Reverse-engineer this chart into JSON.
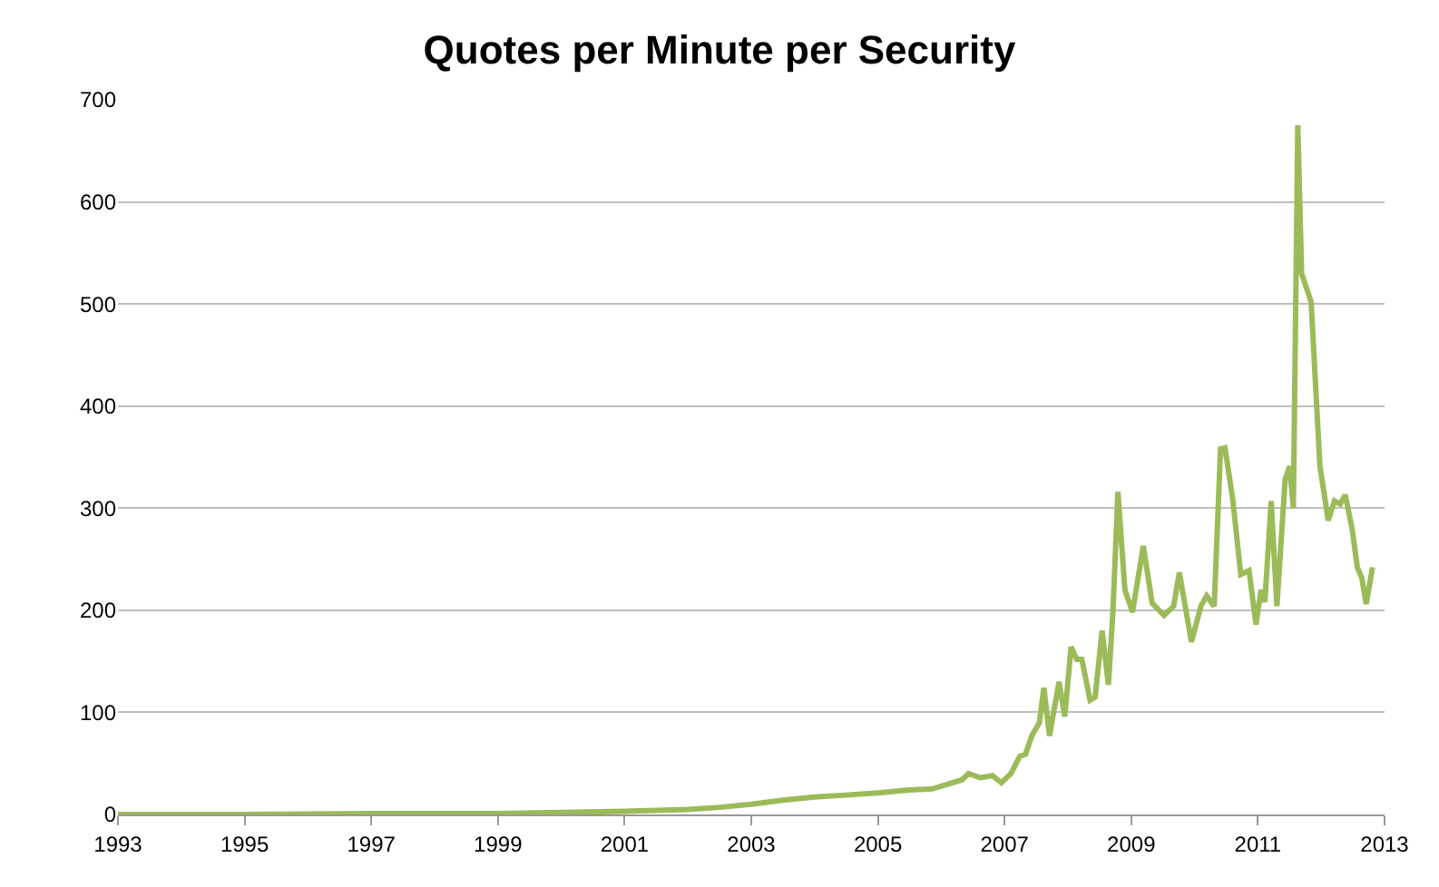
{
  "chart_data": {
    "type": "line",
    "title": "Quotes per Minute per Security",
    "x": [
      1993,
      1995,
      1997,
      1999,
      2000,
      2001,
      2001.5,
      2002,
      2002.5,
      2003,
      2003.5,
      2004,
      2004.5,
      2005,
      2005.5,
      2005.86,
      2006.33,
      2006.43,
      2006.62,
      2006.81,
      2006.95,
      2007.1,
      2007.24,
      2007.33,
      2007.43,
      2007.55,
      2007.62,
      2007.71,
      2007.86,
      2007.95,
      2008.05,
      2008.14,
      2008.22,
      2008.35,
      2008.43,
      2008.54,
      2008.64,
      2008.71,
      2008.79,
      2008.9,
      2009.02,
      2009.19,
      2009.33,
      2009.52,
      2009.67,
      2009.76,
      2009.95,
      2010.1,
      2010.19,
      2010.31,
      2010.41,
      2010.48,
      2010.6,
      2010.73,
      2010.86,
      2010.97,
      2011.05,
      2011.11,
      2011.21,
      2011.3,
      2011.43,
      2011.5,
      2011.56,
      2011.63,
      2011.69,
      2011.84,
      2011.98,
      2012.11,
      2012.21,
      2012.3,
      2012.38,
      2012.49,
      2012.57,
      2012.64,
      2012.71,
      2012.81
    ],
    "series": [
      {
        "color": "#9bbb59",
        "values": [
          0,
          0,
          1,
          1,
          2,
          3,
          4,
          5,
          7,
          10,
          14,
          17,
          19,
          21,
          24,
          25,
          34,
          40,
          36,
          38,
          31,
          40,
          57,
          59,
          77,
          90,
          124,
          77,
          130,
          96,
          164,
          152,
          152,
          112,
          115,
          180,
          127,
          198,
          316,
          220,
          198,
          263,
          207,
          195,
          204,
          237,
          169,
          204,
          214,
          204,
          358,
          359,
          310,
          235,
          239,
          186,
          220,
          208,
          307,
          204,
          328,
          341,
          300,
          675,
          530,
          502,
          341,
          288,
          307,
          304,
          313,
          279,
          242,
          232,
          206,
          242
        ]
      }
    ],
    "xlim": [
      1993,
      2013
    ],
    "xticks": [
      1993,
      1995,
      1997,
      1999,
      2001,
      2003,
      2005,
      2007,
      2009,
      2011,
      2013
    ],
    "ylim": [
      0,
      700
    ],
    "yticks": [
      0,
      100,
      200,
      300,
      400,
      500,
      600,
      700
    ],
    "grid": "y",
    "marker": "none",
    "line_style": "solid"
  }
}
